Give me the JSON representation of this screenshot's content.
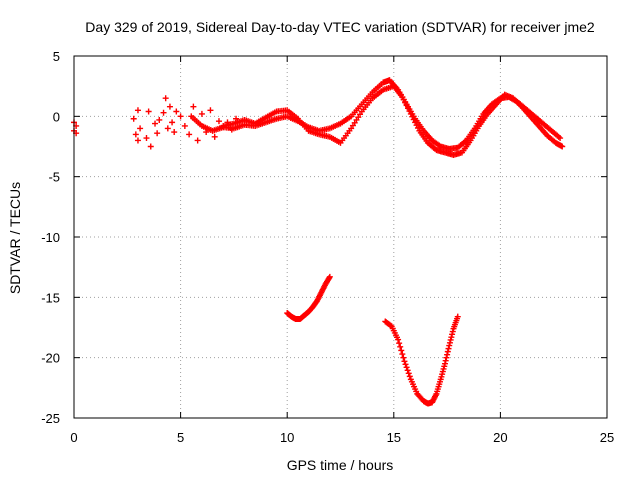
{
  "chart_data": {
    "type": "scatter",
    "title": "Day 329 of 2019, Sidereal Day-to-day VTEC variation (SDTVAR) for receiver jme2",
    "xlabel": "GPS time / hours",
    "ylabel": "SDTVAR / TECUs",
    "xlim": [
      0,
      25
    ],
    "ylim": [
      -25,
      5
    ],
    "xticks": [
      0,
      5,
      10,
      15,
      20,
      25
    ],
    "yticks": [
      5,
      0,
      -5,
      -10,
      -15,
      -20,
      -25
    ],
    "xtick_labels": [
      "0",
      "5",
      "10",
      "15",
      "20",
      "25"
    ],
    "ytick_labels": [
      "5",
      "0",
      "-5",
      "-10",
      "-15",
      "-20",
      "-25"
    ],
    "grid": true,
    "marker": "+",
    "color": "#ff0000",
    "series": [
      {
        "name": "scatter-cluster-early",
        "x": [
          0.0,
          0.0,
          0.1,
          0.1,
          2.8,
          2.9,
          3.0,
          3.0,
          3.1,
          3.4,
          3.5,
          3.6,
          3.8,
          3.9,
          4.0,
          4.2,
          4.3,
          4.4,
          4.5,
          4.6,
          4.7,
          4.8,
          5.0,
          5.2,
          5.4,
          5.6,
          5.8,
          6.0,
          6.2,
          6.4,
          6.6,
          6.8,
          7.0,
          7.2,
          7.4,
          7.6
        ],
        "y": [
          -0.5,
          -1.2,
          -0.8,
          -1.4,
          -0.2,
          -1.5,
          0.5,
          -2.0,
          -1.0,
          -1.8,
          0.4,
          -2.5,
          -0.6,
          -1.4,
          -0.3,
          0.3,
          1.5,
          -1.0,
          0.8,
          -0.5,
          -1.3,
          0.4,
          0.0,
          -0.8,
          -1.5,
          0.8,
          -2.0,
          0.2,
          -1.3,
          0.5,
          -1.7,
          -0.4,
          -0.9,
          -0.5,
          -1.1,
          -0.2
        ]
      },
      {
        "name": "scatter-trace-a",
        "x": [
          5.5,
          6.0,
          6.5,
          7.0,
          7.5,
          8.0,
          8.5,
          9.0,
          9.5,
          10.0,
          10.5,
          11.0,
          11.5,
          12.0,
          12.5,
          13.0,
          13.5,
          14.0,
          14.5,
          14.8,
          15.2,
          15.6,
          16.0,
          16.4,
          16.8,
          17.2,
          17.6,
          18.0,
          18.4,
          18.8,
          19.2,
          19.6,
          20.0,
          20.4,
          20.8,
          21.2,
          21.6,
          22.0,
          22.4,
          22.8
        ],
        "y": [
          0.0,
          -0.8,
          -1.2,
          -0.9,
          -1.0,
          -0.7,
          -0.8,
          -0.5,
          -0.2,
          0.0,
          -0.4,
          -0.9,
          -1.2,
          -1.0,
          -0.6,
          0.0,
          1.0,
          2.0,
          2.8,
          3.0,
          2.2,
          1.0,
          -0.2,
          -1.2,
          -2.0,
          -2.5,
          -2.7,
          -2.6,
          -2.0,
          -1.0,
          0.2,
          1.0,
          1.5,
          1.6,
          1.2,
          0.6,
          0.0,
          -0.6,
          -1.2,
          -1.8
        ]
      },
      {
        "name": "scatter-trace-b",
        "x": [
          7.0,
          7.5,
          8.0,
          8.5,
          9.0,
          9.5,
          10.0,
          10.5,
          11.0,
          11.5,
          12.0,
          12.5,
          13.0,
          13.5,
          14.0,
          14.5,
          15.0,
          15.4,
          15.8,
          16.2,
          16.6,
          17.0,
          17.4,
          17.8,
          18.2,
          18.6,
          19.0,
          19.4,
          19.8,
          20.2,
          20.6,
          21.0,
          21.4,
          21.8,
          22.2,
          22.6,
          22.9
        ],
        "y": [
          -0.8,
          -0.6,
          -0.3,
          -0.6,
          -0.1,
          0.4,
          0.5,
          -0.2,
          -1.2,
          -1.5,
          -1.7,
          -2.2,
          -1.0,
          0.4,
          1.5,
          2.2,
          2.5,
          1.6,
          0.2,
          -1.2,
          -2.2,
          -2.8,
          -3.0,
          -3.2,
          -3.0,
          -2.0,
          -0.8,
          0.2,
          1.0,
          1.8,
          1.5,
          0.8,
          0.0,
          -0.8,
          -1.6,
          -2.2,
          -2.5
        ]
      },
      {
        "name": "scatter-arc-low-1",
        "x": [
          10.0,
          10.2,
          10.4,
          10.6,
          10.8,
          11.0,
          11.2,
          11.4,
          11.6,
          11.8,
          12.0
        ],
        "y": [
          -16.3,
          -16.6,
          -16.8,
          -16.8,
          -16.5,
          -16.2,
          -15.8,
          -15.3,
          -14.6,
          -13.9,
          -13.3
        ]
      },
      {
        "name": "scatter-arc-low-2",
        "x": [
          14.6,
          14.9,
          15.2,
          15.5,
          15.8,
          16.1,
          16.4,
          16.6,
          16.8,
          17.0,
          17.2,
          17.4,
          17.6,
          17.8,
          18.0
        ],
        "y": [
          -17.0,
          -17.4,
          -18.5,
          -20.3,
          -21.8,
          -23.0,
          -23.6,
          -23.8,
          -23.7,
          -23.0,
          -21.8,
          -20.5,
          -19.0,
          -17.6,
          -16.6
        ]
      }
    ]
  }
}
